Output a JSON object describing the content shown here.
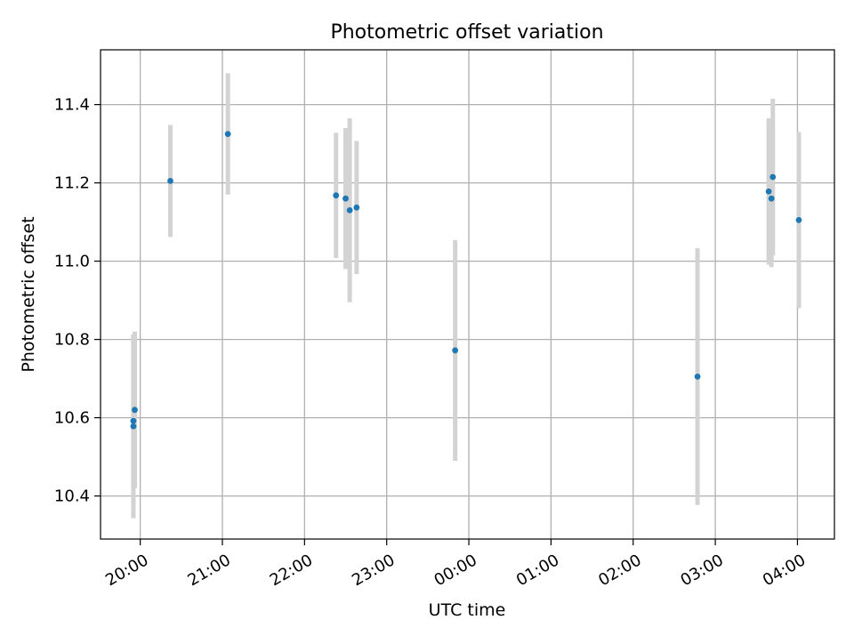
{
  "chart_data": {
    "type": "scatter",
    "title": "Photometric offset variation",
    "xlabel": "UTC time",
    "ylabel": "Photometric offset",
    "x_tick_labels": [
      "20:00",
      "21:00",
      "22:00",
      "23:00",
      "00:00",
      "01:00",
      "02:00",
      "03:00",
      "04:00"
    ],
    "y_tick_labels": [
      "10.4",
      "10.6",
      "10.8",
      "11.0",
      "11.2",
      "11.4"
    ],
    "x_ticks": [
      "20:00",
      "21:00",
      "22:00",
      "23:00",
      "00:00",
      "01:00",
      "02:00",
      "03:00",
      "04:00"
    ],
    "y_ticks": [
      10.4,
      10.6,
      10.8,
      11.0,
      11.2,
      11.4
    ],
    "xlim": [
      "19:31",
      "04:27"
    ],
    "ylim": [
      10.29,
      11.54
    ],
    "grid": true,
    "colors": {
      "point": "#1f77b4",
      "errorbar": "#d3d3d3",
      "grid": "#b0b0b0"
    },
    "points": [
      {
        "time": "19:55",
        "y": 10.578,
        "err": 0.235
      },
      {
        "time": "19:55",
        "y": 10.592,
        "err": 0.22
      },
      {
        "time": "19:56",
        "y": 10.62,
        "err": 0.2
      },
      {
        "time": "20:22",
        "y": 11.205,
        "err": 0.143
      },
      {
        "time": "21:04",
        "y": 11.325,
        "err": 0.155
      },
      {
        "time": "22:23",
        "y": 11.168,
        "err": 0.16
      },
      {
        "time": "22:30",
        "y": 11.16,
        "err": 0.18
      },
      {
        "time": "22:33",
        "y": 11.13,
        "err": 0.235
      },
      {
        "time": "22:38",
        "y": 11.137,
        "err": 0.17
      },
      {
        "time": "23:50",
        "y": 10.772,
        "err": 0.282
      },
      {
        "time": "02:47",
        "y": 10.705,
        "err": 0.328
      },
      {
        "time": "03:39",
        "y": 11.178,
        "err": 0.187
      },
      {
        "time": "03:41",
        "y": 11.16,
        "err": 0.175
      },
      {
        "time": "03:42",
        "y": 11.215,
        "err": 0.2
      },
      {
        "time": "04:01",
        "y": 11.105,
        "err": 0.225
      }
    ]
  }
}
